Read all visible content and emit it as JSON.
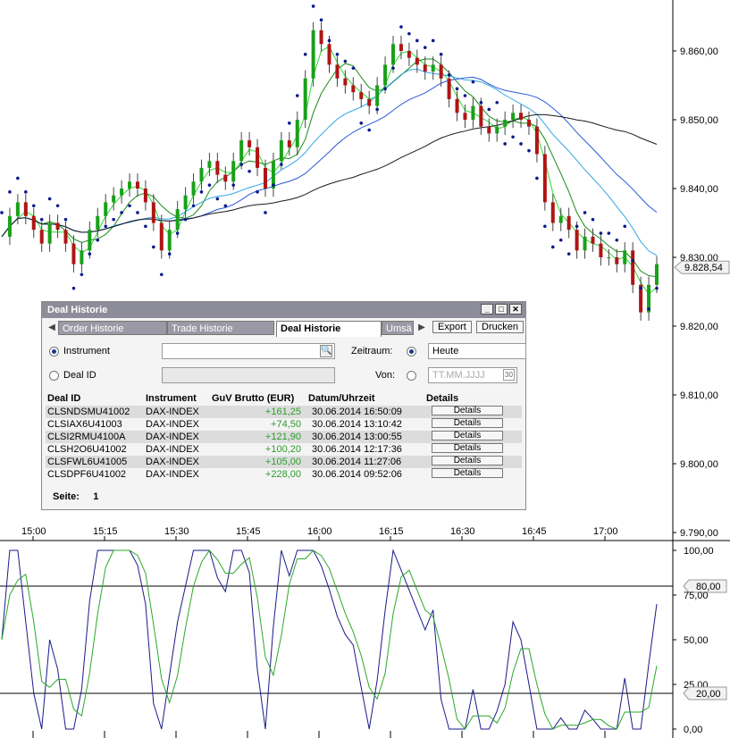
{
  "chart_data": {
    "type": "candlestick",
    "price_axis": {
      "labels": [
        "9.860,00",
        "9.850,00",
        "9.840,00",
        "9.830,00",
        "9.820,00",
        "9.810,00",
        "9.800,00",
        "9.790,00"
      ],
      "current_price": "9.828,54"
    },
    "time_axis": {
      "labels": [
        "15:00",
        "15:15",
        "15:30",
        "15:45",
        "16:00",
        "16:15",
        "16:30",
        "16:45",
        "17:00"
      ]
    },
    "oscillator_axis": {
      "labels": [
        "100,00",
        "80,00",
        "75,00",
        "50,00",
        "25,00",
        "20,00",
        "0,00"
      ],
      "upper_band": "80,00",
      "lower_band": "20,00"
    },
    "price_series": [
      9833,
      9836,
      9838,
      9836,
      9834,
      9832,
      9835,
      9834,
      9832,
      9829,
      9831,
      9834,
      9836,
      9838,
      9839,
      9840,
      9841,
      9840,
      9838,
      9835,
      9831,
      9834,
      9837,
      9839,
      9841,
      9843,
      9844,
      9842,
      9841,
      9844,
      9847,
      9846,
      9843,
      9840,
      9844,
      9847,
      9846,
      9850,
      9856,
      9863,
      9861,
      9858,
      9856,
      9855,
      9854,
      9853,
      9852,
      9855,
      9858,
      9861,
      9860,
      9859,
      9858,
      9857,
      9858,
      9856,
      9853,
      9851,
      9850,
      9852,
      9849,
      9848,
      9849,
      9850,
      9851,
      9850,
      9849,
      9845,
      9838,
      9835,
      9836,
      9834,
      9831,
      9833,
      9832,
      9830,
      9830,
      9829,
      9831,
      9826,
      9822,
      9826,
      9829
    ],
    "colors": {
      "up": "#1aa01a",
      "down": "#b01414",
      "sar": "#0a1a8a",
      "sma_long": "#1a1a1a",
      "sma_mid": "#2a5ad8",
      "ema": "#1a8a1a",
      "ema_fast": "#2adc2a",
      "band": "#32a6e6"
    }
  },
  "deal_window": {
    "title": "Deal Historie",
    "controls": {
      "minimize": "_",
      "maximize": "□",
      "close": "✕"
    },
    "tabs": [
      {
        "label": "Order Historie",
        "active": false
      },
      {
        "label": "Trade Historie",
        "active": false
      },
      {
        "label": "Deal Historie",
        "active": true
      },
      {
        "label": "Umsä",
        "active": false
      }
    ],
    "buttons": {
      "export": "Export",
      "print": "Drucken"
    },
    "form": {
      "instrument_label": "Instrument",
      "deal_id_label": "Deal ID",
      "period_label": "Zeitraum:",
      "period_value": "Heute",
      "from_label": "Von:",
      "date_placeholder": "TT.MM.JJJJ",
      "calendar_icon": "30"
    },
    "columns": [
      "Deal ID",
      "Instrument",
      "GuV Brutto (EUR)",
      "Datum/Uhrzeit",
      "Details"
    ],
    "rows": [
      {
        "id": "CLSNDSMU41002",
        "instrument": "DAX-INDEX",
        "pnl": "+161,25",
        "date": "30.06.2014 16:50:09",
        "details": "Details"
      },
      {
        "id": "CLSIAX6U41003",
        "instrument": "DAX-INDEX",
        "pnl": "+74,50",
        "date": "30.06.2014 13:10:42",
        "details": "Details"
      },
      {
        "id": "CLSI2RMU4100A",
        "instrument": "DAX-INDEX",
        "pnl": "+121,90",
        "date": "30.06.2014 13:00:55",
        "details": "Details"
      },
      {
        "id": "CLSH2O6U41002",
        "instrument": "DAX-INDEX",
        "pnl": "+100,20",
        "date": "30.06.2014 12:17:36",
        "details": "Details"
      },
      {
        "id": "CLSFWL6U41005",
        "instrument": "DAX-INDEX",
        "pnl": "+105,00",
        "date": "30.06.2014 11:27:06",
        "details": "Details"
      },
      {
        "id": "CLSDPF6U41002",
        "instrument": "DAX-INDEX",
        "pnl": "+228,00",
        "date": "30.06.2014 09:52:06",
        "details": "Details"
      }
    ],
    "page_label": "Seite:",
    "page_number": "1"
  }
}
